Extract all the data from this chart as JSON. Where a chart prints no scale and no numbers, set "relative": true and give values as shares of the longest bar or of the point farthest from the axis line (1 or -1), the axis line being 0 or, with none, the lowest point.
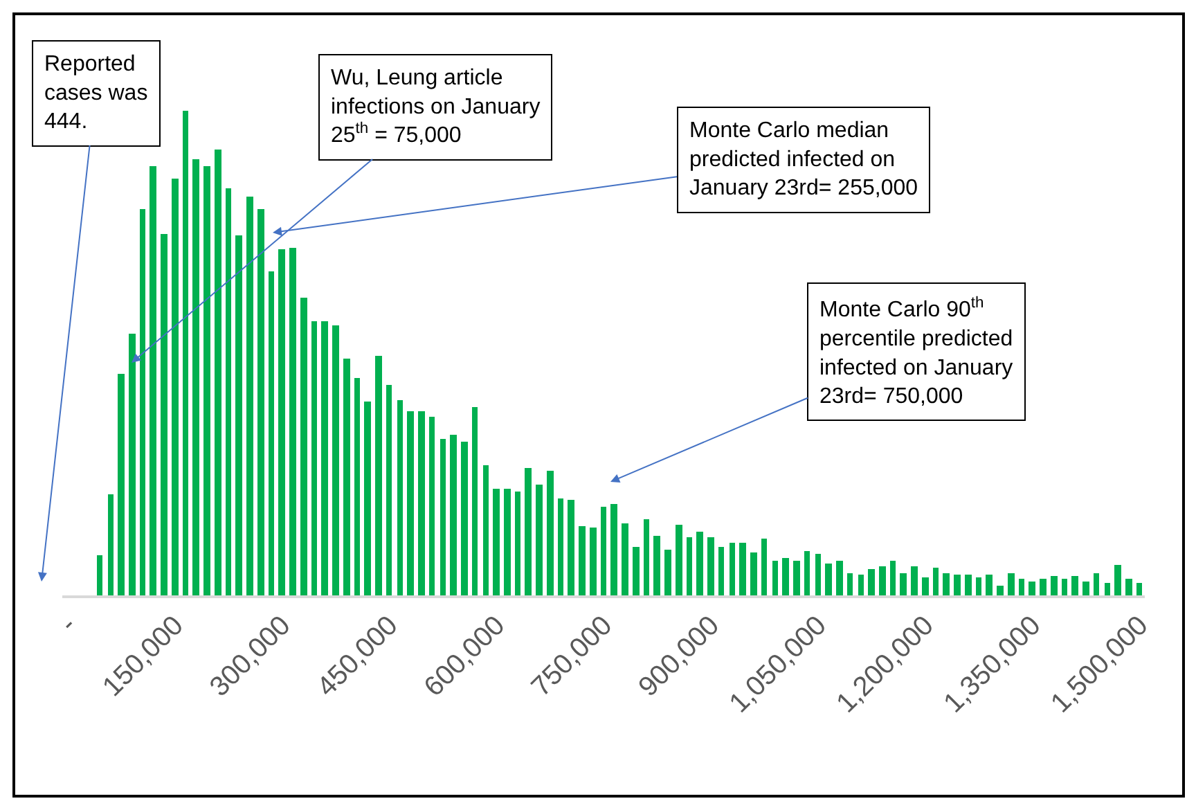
{
  "chart_data": {
    "type": "bar",
    "relative": true,
    "color": "#00b050",
    "x": [
      45000,
      60000,
      75000,
      90000,
      105000,
      120000,
      135000,
      150000,
      165000,
      180000,
      195000,
      210000,
      225000,
      240000,
      255000,
      270000,
      285000,
      300000,
      315000,
      330000,
      345000,
      360000,
      375000,
      390000,
      405000,
      420000,
      435000,
      450000,
      465000,
      480000,
      495000,
      510000,
      525000,
      540000,
      555000,
      570000,
      585000,
      600000,
      615000,
      630000,
      645000,
      660000,
      675000,
      690000,
      705000,
      720000,
      735000,
      750000,
      765000,
      780000,
      795000,
      810000,
      825000,
      840000,
      855000,
      870000,
      885000,
      900000,
      915000,
      930000,
      945000,
      960000,
      975000,
      990000,
      1005000,
      1020000,
      1035000,
      1050000,
      1065000,
      1080000,
      1095000,
      1110000,
      1125000,
      1140000,
      1155000,
      1170000,
      1185000,
      1200000,
      1215000,
      1230000,
      1245000,
      1260000,
      1275000,
      1290000,
      1305000,
      1320000,
      1335000,
      1350000,
      1365000,
      1380000,
      1395000,
      1410000,
      1425000,
      1440000,
      1455000,
      1470000,
      1485000,
      1500000
    ],
    "values": [
      0.082,
      0.208,
      0.457,
      0.539,
      0.796,
      0.886,
      0.745,
      0.86,
      1,
      0.901,
      0.886,
      0.92,
      0.841,
      0.744,
      0.824,
      0.798,
      0.67,
      0.715,
      0.718,
      0.613,
      0.565,
      0.565,
      0.558,
      0.489,
      0.45,
      0.399,
      0.495,
      0.434,
      0.403,
      0.38,
      0.38,
      0.37,
      0.322,
      0.331,
      0.316,
      0.39,
      0.268,
      0.22,
      0.22,
      0.213,
      0.262,
      0.23,
      0.258,
      0.201,
      0.197,
      0.143,
      0.14,
      0.182,
      0.188,
      0.15,
      0.1,
      0.157,
      0.123,
      0.094,
      0.146,
      0.12,
      0.132,
      0.12,
      0.1,
      0.11,
      0.11,
      0.088,
      0.117,
      0.071,
      0.078,
      0.071,
      0.091,
      0.085,
      0.066,
      0.071,
      0.046,
      0.043,
      0.055,
      0.059,
      0.071,
      0.046,
      0.059,
      0.036,
      0.056,
      0.046,
      0.043,
      0.043,
      0.036,
      0.043,
      0.02,
      0.046,
      0.033,
      0.03,
      0.033,
      0.04,
      0.033,
      0.04,
      0.03,
      0.046,
      0.027,
      0.062,
      0.033,
      0.027
    ],
    "xlim": [
      -7500,
      1507500
    ],
    "xticks": [
      {
        "value": 0,
        "label": "-"
      },
      {
        "value": 150000,
        "label": "150,000"
      },
      {
        "value": 300000,
        "label": "300,000"
      },
      {
        "value": 450000,
        "label": "450,000"
      },
      {
        "value": 600000,
        "label": "600,000"
      },
      {
        "value": 750000,
        "label": "750,000"
      },
      {
        "value": 900000,
        "label": "900,000"
      },
      {
        "value": 1050000,
        "label": "1,050,000"
      },
      {
        "value": 1200000,
        "label": "1,200,000"
      },
      {
        "value": 1350000,
        "label": "1,350,000"
      },
      {
        "value": 1500000,
        "label": "1,500,000"
      }
    ],
    "annotations": [
      "Reported cases was 444.",
      "Wu, Leung article infections on January 25$^{th}$ = 75,000",
      "Monte Carlo median predicted infected on January 23rd= 255,000",
      "Monte Carlo 90$^{th}$ percentile predicted infected on January 23rd= 750,000"
    ]
  }
}
